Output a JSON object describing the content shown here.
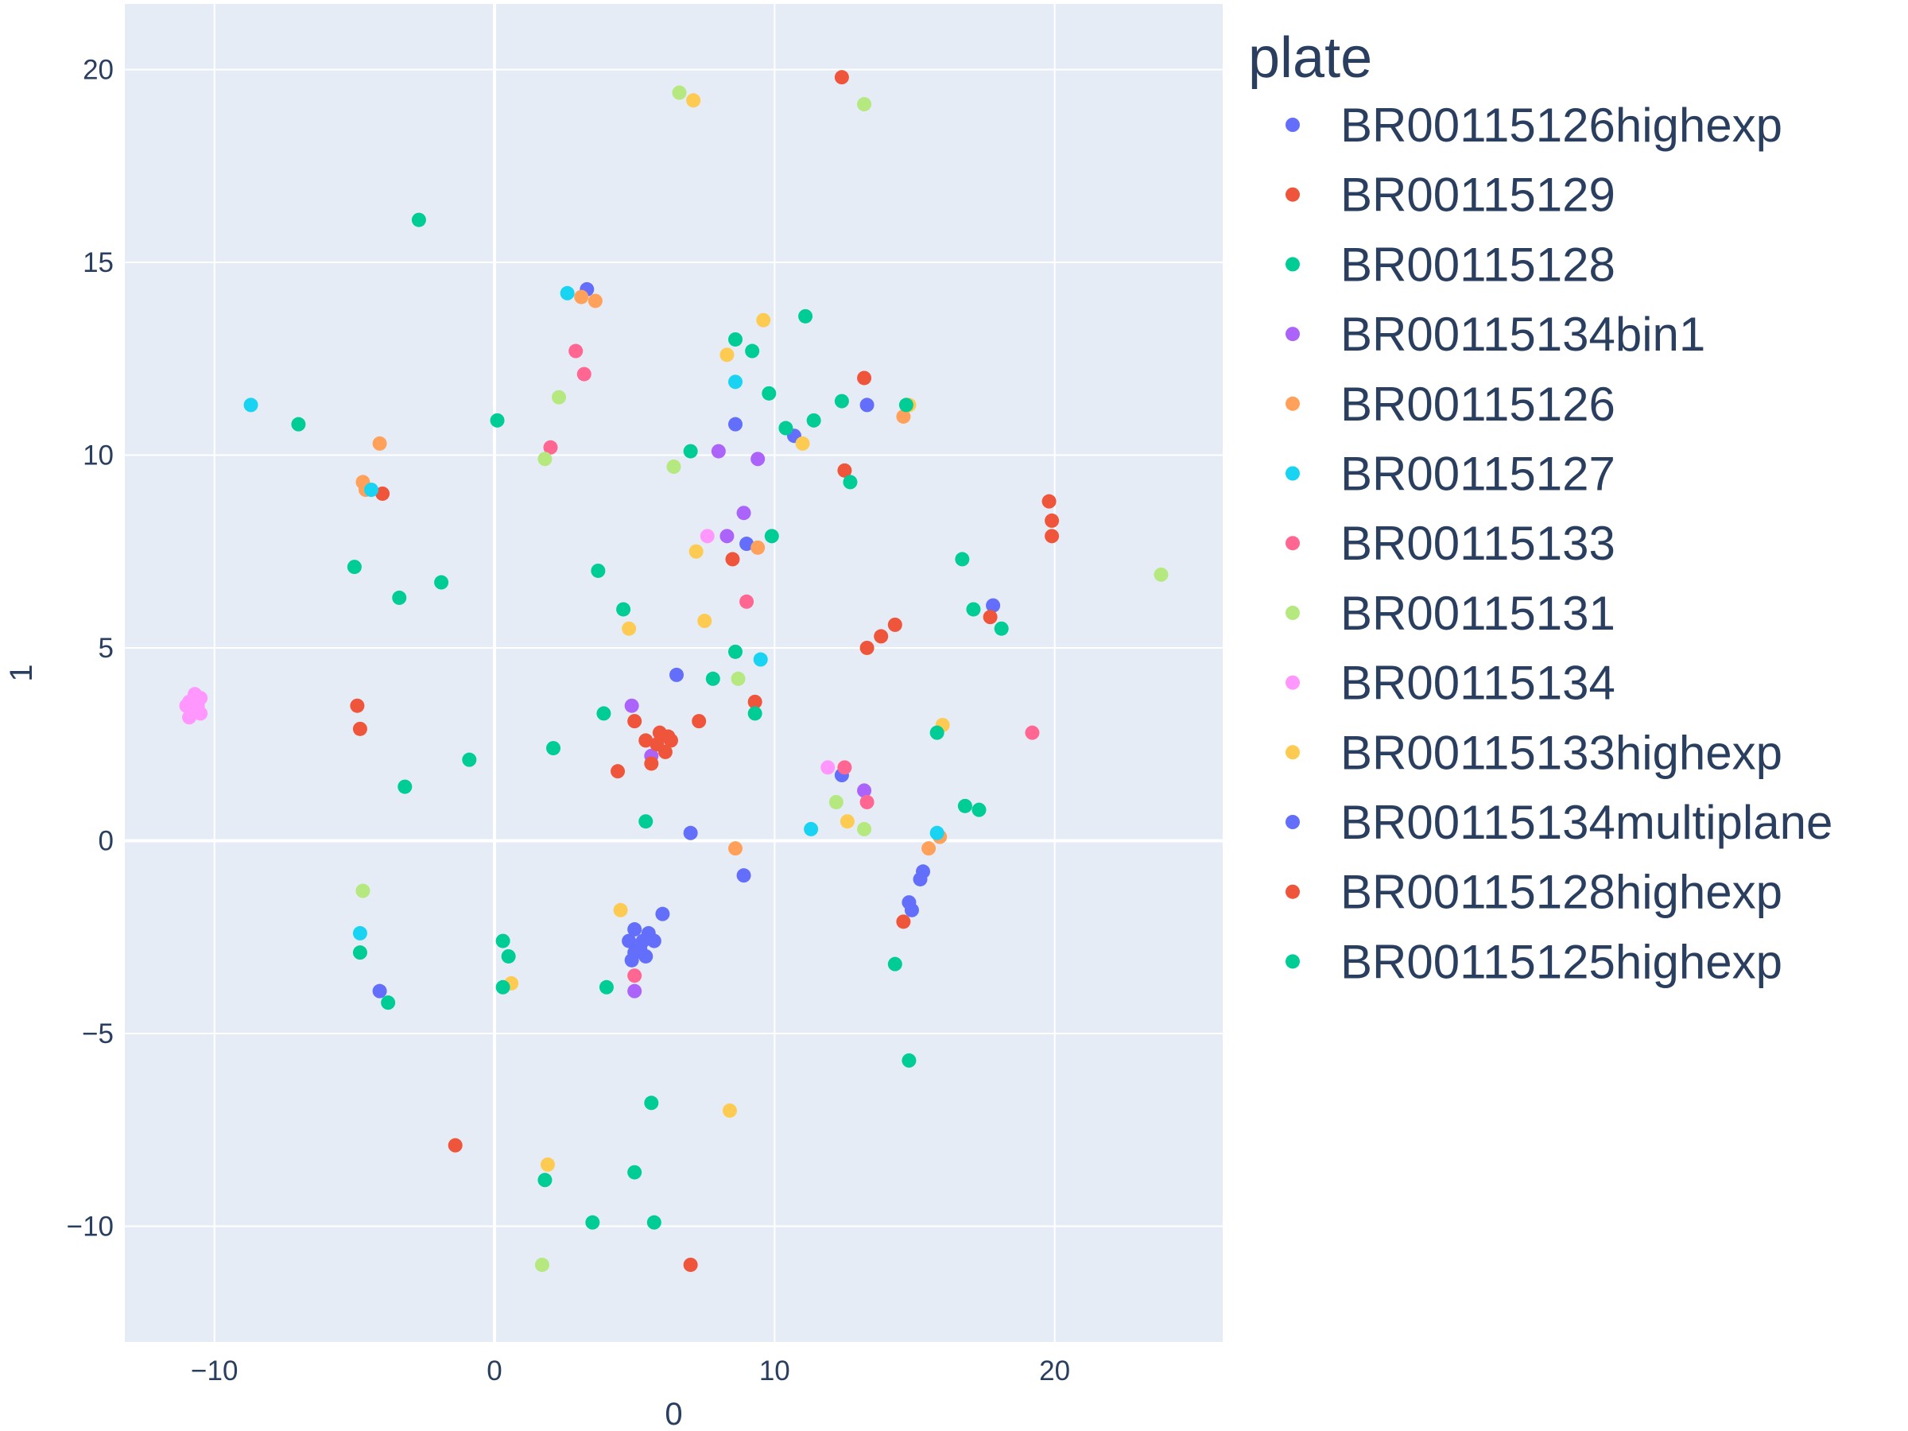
{
  "chart_data": {
    "type": "scatter",
    "title": "",
    "xlabel": "0",
    "ylabel": "1",
    "xlim": [
      -13.2,
      26
    ],
    "ylim": [
      -13.0,
      21.7
    ],
    "grid": true,
    "background": "#e5ecf6",
    "xticks": [
      -10,
      0,
      10,
      20
    ],
    "yticks": [
      -10,
      -5,
      0,
      5,
      10,
      15,
      20
    ],
    "xtick_labels": [
      "−10",
      "0",
      "10",
      "20"
    ],
    "ytick_labels": [
      "−10",
      "−5",
      "0",
      "5",
      "10",
      "15",
      "20"
    ],
    "legend": {
      "title": "plate",
      "placement": "right"
    },
    "series": [
      {
        "name": "BR00115126highexp",
        "color": "#636efa",
        "points": [
          [
            13.3,
            11.3
          ],
          [
            8.6,
            10.8
          ],
          [
            4.8,
            -2.6
          ],
          [
            5.2,
            -2.8
          ],
          [
            5.5,
            -2.4
          ],
          [
            17.8,
            6.1
          ],
          [
            14.9,
            -1.8
          ],
          [
            15.3,
            -0.8
          ],
          [
            10.7,
            10.5
          ],
          [
            12.4,
            1.7
          ],
          [
            5.0,
            -2.3
          ],
          [
            9.0,
            7.7
          ],
          [
            3.3,
            14.3
          ],
          [
            6.5,
            4.3
          ]
        ]
      },
      {
        "name": "BR00115129",
        "color": "#ef553b",
        "points": [
          [
            12.5,
            9.6
          ],
          [
            8.5,
            7.3
          ],
          [
            -4.0,
            9.0
          ],
          [
            -4.9,
            3.5
          ],
          [
            -4.8,
            2.9
          ],
          [
            17.7,
            5.8
          ],
          [
            19.9,
            8.3
          ],
          [
            19.8,
            8.8
          ],
          [
            14.6,
            -2.1
          ],
          [
            5.4,
            2.6
          ],
          [
            6.2,
            2.7
          ],
          [
            9.3,
            3.6
          ],
          [
            13.2,
            12.0
          ],
          [
            12.4,
            19.8
          ]
        ]
      },
      {
        "name": "BR00115128",
        "color": "#00cc96",
        "points": [
          [
            -2.7,
            16.1
          ],
          [
            -7.0,
            10.8
          ],
          [
            -5.0,
            7.1
          ],
          [
            -3.4,
            6.3
          ],
          [
            -1.9,
            6.7
          ],
          [
            0.1,
            10.9
          ],
          [
            3.7,
            7.0
          ],
          [
            2.1,
            2.4
          ],
          [
            -3.2,
            1.4
          ],
          [
            -0.9,
            2.1
          ],
          [
            3.5,
            -9.9
          ],
          [
            5.7,
            -9.9
          ],
          [
            14.8,
            -5.7
          ],
          [
            5.4,
            0.5
          ],
          [
            5.6,
            -6.8
          ],
          [
            5.0,
            -8.6
          ]
        ]
      },
      {
        "name": "BR00115134bin1",
        "color": "#ab63fa",
        "points": [
          [
            8.9,
            8.5
          ],
          [
            5.0,
            -3.9
          ],
          [
            13.2,
            1.3
          ],
          [
            8.3,
            7.9
          ],
          [
            9.4,
            9.9
          ],
          [
            4.9,
            3.5
          ],
          [
            8.0,
            10.1
          ],
          [
            5.6,
            2.2
          ]
        ]
      },
      {
        "name": "BR00115126",
        "color": "#FFA15A",
        "points": [
          [
            -4.1,
            10.3
          ],
          [
            -4.7,
            9.3
          ],
          [
            -4.6,
            9.1
          ],
          [
            3.6,
            14.0
          ],
          [
            15.5,
            -0.2
          ],
          [
            15.9,
            0.1
          ],
          [
            14.6,
            11.0
          ],
          [
            8.6,
            -0.2
          ],
          [
            9.4,
            7.6
          ],
          [
            3.1,
            14.1
          ]
        ]
      },
      {
        "name": "BR00115127",
        "color": "#19d3f3",
        "points": [
          [
            -8.7,
            11.3
          ],
          [
            -4.4,
            9.1
          ],
          [
            -4.8,
            -2.4
          ],
          [
            11.3,
            0.3
          ],
          [
            15.8,
            0.2
          ],
          [
            8.6,
            11.9
          ],
          [
            2.6,
            14.2
          ],
          [
            9.5,
            4.7
          ]
        ]
      },
      {
        "name": "BR00115133",
        "color": "#FF6692",
        "points": [
          [
            19.2,
            2.8
          ],
          [
            12.5,
            1.9
          ],
          [
            13.3,
            1.0
          ],
          [
            9.0,
            6.2
          ],
          [
            3.2,
            12.1
          ],
          [
            2.9,
            12.7
          ],
          [
            2.0,
            10.2
          ],
          [
            5.0,
            -3.5
          ]
        ]
      },
      {
        "name": "BR00115131",
        "color": "#B6E880",
        "points": [
          [
            13.2,
            19.1
          ],
          [
            23.8,
            6.9
          ],
          [
            1.7,
            -11.0
          ],
          [
            1.8,
            9.9
          ],
          [
            2.3,
            11.5
          ],
          [
            12.2,
            1.0
          ],
          [
            13.2,
            0.3
          ],
          [
            8.7,
            4.2
          ],
          [
            -4.7,
            -1.3
          ],
          [
            6.6,
            19.4
          ],
          [
            6.4,
            9.7
          ]
        ]
      },
      {
        "name": "BR00115134",
        "color": "#FF97FF",
        "points": [
          [
            -10.9,
            3.6
          ],
          [
            -10.7,
            3.4
          ],
          [
            -10.5,
            3.7
          ],
          [
            -10.8,
            3.3
          ],
          [
            -10.6,
            3.5
          ],
          [
            -11.0,
            3.5
          ],
          [
            -10.7,
            3.8
          ],
          [
            -10.5,
            3.3
          ],
          [
            -10.9,
            3.2
          ],
          [
            11.9,
            1.9
          ],
          [
            7.6,
            7.9
          ]
        ]
      },
      {
        "name": "BR00115133highexp",
        "color": "#FECB52",
        "points": [
          [
            8.4,
            -7.0
          ],
          [
            7.1,
            19.2
          ],
          [
            4.8,
            5.5
          ],
          [
            7.5,
            5.7
          ],
          [
            9.6,
            13.5
          ],
          [
            11.0,
            10.3
          ],
          [
            8.3,
            12.6
          ],
          [
            7.2,
            7.5
          ],
          [
            1.9,
            -8.4
          ],
          [
            0.6,
            -3.7
          ],
          [
            4.5,
            -1.8
          ],
          [
            14.8,
            11.3
          ],
          [
            16.0,
            3.0
          ],
          [
            12.6,
            0.5
          ]
        ]
      },
      {
        "name": "BR00115134multiplane",
        "color": "#636efa",
        "points": [
          [
            5.0,
            -2.9
          ],
          [
            5.3,
            -2.6
          ],
          [
            4.9,
            -3.1
          ],
          [
            5.7,
            -2.6
          ],
          [
            6.0,
            -1.9
          ],
          [
            15.2,
            -1.0
          ],
          [
            14.8,
            -1.6
          ],
          [
            -4.1,
            -3.9
          ],
          [
            8.9,
            -0.9
          ],
          [
            7.0,
            0.2
          ],
          [
            5.4,
            -3.0
          ]
        ]
      },
      {
        "name": "BR00115128highexp",
        "color": "#ef553b",
        "points": [
          [
            5.8,
            2.5
          ],
          [
            6.1,
            2.3
          ],
          [
            5.6,
            2.0
          ],
          [
            6.3,
            2.6
          ],
          [
            5.9,
            2.8
          ],
          [
            13.3,
            5.0
          ],
          [
            13.8,
            5.3
          ],
          [
            14.3,
            5.6
          ],
          [
            -1.4,
            -7.9
          ],
          [
            7.0,
            -11.0
          ],
          [
            19.9,
            7.9
          ],
          [
            5.0,
            3.1
          ],
          [
            4.4,
            1.8
          ],
          [
            7.3,
            3.1
          ]
        ]
      },
      {
        "name": "BR00115125highexp",
        "color": "#00cc96",
        "points": [
          [
            11.1,
            13.6
          ],
          [
            9.8,
            11.6
          ],
          [
            10.4,
            10.7
          ],
          [
            9.2,
            12.7
          ],
          [
            8.6,
            13.0
          ],
          [
            16.7,
            7.3
          ],
          [
            17.3,
            0.8
          ],
          [
            16.8,
            0.9
          ],
          [
            18.1,
            5.5
          ],
          [
            17.1,
            6.0
          ],
          [
            -3.8,
            -4.2
          ],
          [
            -4.8,
            -2.9
          ],
          [
            0.3,
            -2.6
          ],
          [
            1.8,
            -8.8
          ],
          [
            14.3,
            -3.2
          ],
          [
            7.8,
            4.2
          ],
          [
            8.6,
            4.9
          ],
          [
            9.9,
            7.9
          ],
          [
            3.9,
            3.3
          ],
          [
            4.6,
            6.0
          ],
          [
            15.8,
            2.8
          ],
          [
            14.7,
            11.3
          ],
          [
            4.0,
            -3.8
          ],
          [
            11.4,
            10.9
          ],
          [
            12.4,
            11.4
          ],
          [
            12.7,
            9.3
          ],
          [
            7.0,
            10.1
          ],
          [
            9.3,
            3.3
          ],
          [
            0.3,
            -3.8
          ],
          [
            0.5,
            -3.0
          ]
        ]
      }
    ]
  }
}
